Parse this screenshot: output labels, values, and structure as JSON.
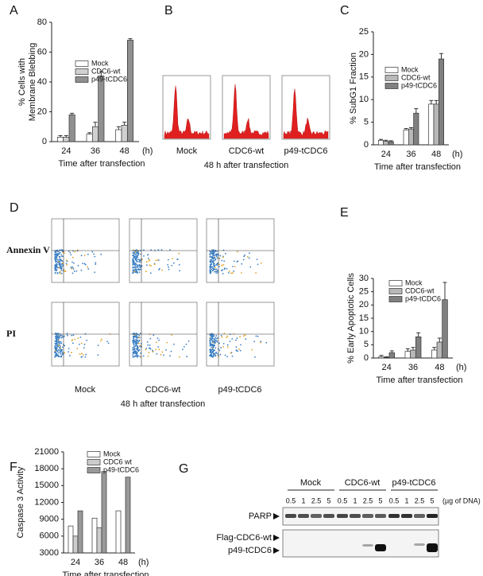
{
  "chart_data": [
    {
      "type": "bar",
      "label": "A",
      "ylabel": [
        "% Cells with",
        "Membrane Blebbing"
      ],
      "xlabel": "Time after transfection",
      "x_unit": "(h)",
      "categories": [
        "24",
        "36",
        "48"
      ],
      "ylim": [
        0,
        80
      ],
      "yticks": [
        0,
        20,
        40,
        60,
        80
      ],
      "series": [
        {
          "name": "Mock",
          "color": "#ffffff",
          "values": [
            3,
            5,
            8
          ],
          "errors": [
            1,
            1,
            2
          ]
        },
        {
          "name": "CDC6-wt",
          "color": "#d0d0d0",
          "values": [
            3,
            10,
            11
          ],
          "errors": [
            1,
            3,
            2
          ]
        },
        {
          "name": "p49-tCDC6",
          "color": "#909090",
          "values": [
            18,
            44,
            68
          ],
          "errors": [
            1,
            3,
            1
          ]
        }
      ]
    },
    {
      "type": "bar",
      "label": "C",
      "ylabel": "% SubG1 Fraction",
      "xlabel": "Time after transfection",
      "x_unit": "(h)",
      "categories": [
        "24",
        "36",
        "48"
      ],
      "ylim": [
        0,
        25
      ],
      "yticks": [
        0,
        5,
        10,
        15,
        20,
        25
      ],
      "series": [
        {
          "name": "Mock",
          "color": "#ffffff",
          "values": [
            1,
            3.3,
            9
          ],
          "errors": [
            0.2,
            0.3,
            0.8
          ]
        },
        {
          "name": "CDC6-wt",
          "color": "#b8b8b8",
          "values": [
            0.8,
            3.5,
            9
          ],
          "errors": [
            0.2,
            0.3,
            0.8
          ]
        },
        {
          "name": "p49-tCDC6",
          "color": "#808080",
          "values": [
            0.7,
            7,
            19
          ],
          "errors": [
            0.2,
            1,
            1.2
          ]
        }
      ]
    },
    {
      "type": "bar",
      "label": "E",
      "ylabel": "% Early Apoptotic Cells",
      "xlabel": "Time after transfection",
      "x_unit": "(h)",
      "categories": [
        "24",
        "36",
        "48"
      ],
      "ylim": [
        0,
        30
      ],
      "yticks": [
        0,
        5,
        10,
        15,
        20,
        25,
        30
      ],
      "series": [
        {
          "name": "Mock",
          "color": "#ffffff",
          "values": [
            0.5,
            2.5,
            3
          ],
          "errors": [
            0.5,
            1,
            1
          ]
        },
        {
          "name": "CDC6-wt",
          "color": "#b8b8b8",
          "values": [
            0.2,
            3,
            6
          ],
          "errors": [
            0.3,
            1,
            1.5
          ]
        },
        {
          "name": "p49-tCDC6",
          "color": "#808080",
          "values": [
            2,
            8,
            22
          ],
          "errors": [
            0.7,
            1.5,
            6.5
          ]
        }
      ]
    },
    {
      "type": "bar",
      "label": "F",
      "ylabel": "Caspase 3 Activity",
      "xlabel": "Time after transfection",
      "x_unit": "(h)",
      "categories": [
        "24",
        "36",
        "48"
      ],
      "ylim": [
        3000,
        21000
      ],
      "yticks": [
        3000,
        6000,
        9000,
        12000,
        15000,
        18000,
        21000
      ],
      "series": [
        {
          "name": "Mock",
          "color": "#ffffff",
          "values": [
            7800,
            9200,
            10500
          ]
        },
        {
          "name": "CDC6 wt",
          "color": "#cccccc",
          "values": [
            6000,
            7500,
            3000
          ]
        },
        {
          "name": "p49-tCDC6",
          "color": "#999999",
          "values": [
            10500,
            17500,
            16500
          ]
        }
      ]
    }
  ],
  "panel_b": {
    "label": "B",
    "plots": [
      "Mock",
      "CDC6-wt",
      "p49-tCDC6"
    ],
    "caption": "48 h after transfection"
  },
  "panel_d": {
    "label": "D",
    "rows": [
      "Annexin V",
      "PI"
    ],
    "plots": [
      "Mock",
      "CDC6-wt",
      "p49-tCDC6"
    ],
    "caption": "48 h after transfection"
  },
  "panel_g": {
    "label": "G",
    "groups": [
      "Mock",
      "CDC6-wt",
      "p49-tCDC6"
    ],
    "lanes": [
      "0.5",
      "1",
      "2.5",
      "5"
    ],
    "unit": "(µg of DNA)",
    "bands": [
      "PARP",
      "Flag-CDC6-wt",
      "p49-tCDC6"
    ]
  }
}
